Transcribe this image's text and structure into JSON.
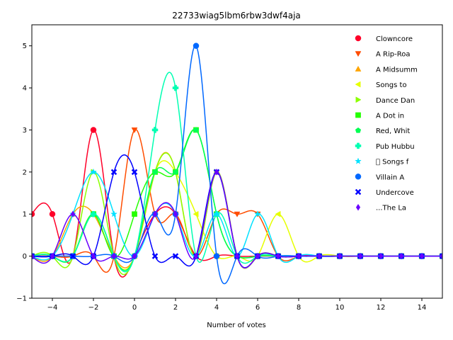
{
  "chart_data": {
    "type": "line",
    "title": "22733wiag5lbm6rbw3dwf4aja",
    "xlabel": "Number of votes",
    "ylabel": "",
    "xlim": [
      -5,
      15
    ],
    "ylim": [
      -1,
      5.5
    ],
    "xticks": [
      -4,
      -2,
      0,
      2,
      4,
      6,
      8,
      10,
      12,
      14
    ],
    "yticks": [
      -1,
      0,
      1,
      2,
      3,
      4,
      5
    ],
    "grid": false,
    "legend_position": "top-right",
    "x": [
      -5,
      -4,
      -3,
      -2,
      -1,
      0,
      1,
      2,
      3,
      4,
      5,
      6,
      7,
      8,
      9,
      10,
      11,
      12,
      13,
      14,
      15
    ],
    "series": [
      {
        "name": "Clowncore",
        "color": "#ff0029",
        "marker": "circle",
        "values": [
          1,
          1,
          0,
          3,
          0,
          0,
          1,
          1,
          0,
          0,
          0,
          0,
          0,
          0,
          0,
          0,
          0,
          0,
          0,
          0,
          0
        ]
      },
      {
        "name": "A Rip-Roa",
        "color": "#ff4d00",
        "marker": "triangle-down",
        "values": [
          0,
          0,
          0,
          0,
          0,
          3,
          1,
          1,
          0,
          1,
          1,
          1,
          0,
          0,
          0,
          0,
          0,
          0,
          0,
          0,
          0
        ]
      },
      {
        "name": "A Midsumm",
        "color": "#ffa500",
        "marker": "triangle-up",
        "values": [
          0,
          0,
          1,
          1,
          0,
          0,
          2,
          2,
          0,
          2,
          0,
          0,
          0,
          0,
          0,
          0,
          0,
          0,
          0,
          0,
          0
        ]
      },
      {
        "name": "Songs to",
        "color": "#e6ff00",
        "marker": "triangle-left",
        "values": [
          0,
          0,
          0,
          1,
          0,
          0,
          2,
          2,
          1,
          0,
          0,
          0,
          1,
          0,
          0,
          0,
          0,
          0,
          0,
          0,
          0
        ]
      },
      {
        "name": "Dance Dan",
        "color": "#8cff00",
        "marker": "triangle-right",
        "values": [
          0,
          0,
          0,
          2,
          0,
          0,
          2,
          2,
          0,
          2,
          0,
          0,
          0,
          0,
          0,
          0,
          0,
          0,
          0,
          0,
          0
        ]
      },
      {
        "name": "A Dot in",
        "color": "#24ff00",
        "marker": "square",
        "values": [
          0,
          0,
          0,
          1,
          0,
          1,
          2,
          2,
          3,
          1,
          0,
          0,
          0,
          0,
          0,
          0,
          0,
          0,
          0,
          0,
          0
        ]
      },
      {
        "name": "Red, Whit",
        "color": "#00ff52",
        "marker": "pentagon",
        "values": [
          0,
          0,
          0,
          1,
          0,
          0,
          2,
          2,
          3,
          1,
          0,
          0,
          0,
          0,
          0,
          0,
          0,
          0,
          0,
          0,
          0
        ]
      },
      {
        "name": "Pub Hubbu",
        "color": "#00ffb2",
        "marker": "plus",
        "values": [
          0,
          0,
          0,
          1,
          0,
          0,
          3,
          4,
          0,
          1,
          0,
          0,
          0,
          0,
          0,
          0,
          0,
          0,
          0,
          0,
          0
        ]
      },
      {
        "name": "\u0000 Songs f",
        "color": "#00e1ff",
        "marker": "star",
        "values": [
          0,
          0,
          1,
          2,
          1,
          0,
          1,
          1,
          0,
          1,
          0,
          1,
          0,
          0,
          0,
          0,
          0,
          0,
          0,
          0,
          0
        ]
      },
      {
        "name": "Villain A",
        "color": "#0068ff",
        "marker": "circle",
        "values": [
          0,
          0,
          0,
          0,
          0,
          0,
          1,
          1,
          5,
          0,
          0,
          0,
          0,
          0,
          0,
          0,
          0,
          0,
          0,
          0,
          0
        ]
      },
      {
        "name": "Undercove",
        "color": "#0000ff",
        "marker": "x",
        "values": [
          0,
          0,
          0,
          0,
          2,
          2,
          0,
          0,
          0,
          2,
          0,
          0,
          0,
          0,
          0,
          0,
          0,
          0,
          0,
          0,
          0
        ]
      },
      {
        "name": "...The La",
        "color": "#6a00ff",
        "marker": "diamond",
        "values": [
          0,
          0,
          1,
          0,
          0,
          0,
          1,
          1,
          0,
          2,
          0,
          0,
          0,
          0,
          0,
          0,
          0,
          0,
          0,
          0,
          0
        ]
      }
    ]
  }
}
